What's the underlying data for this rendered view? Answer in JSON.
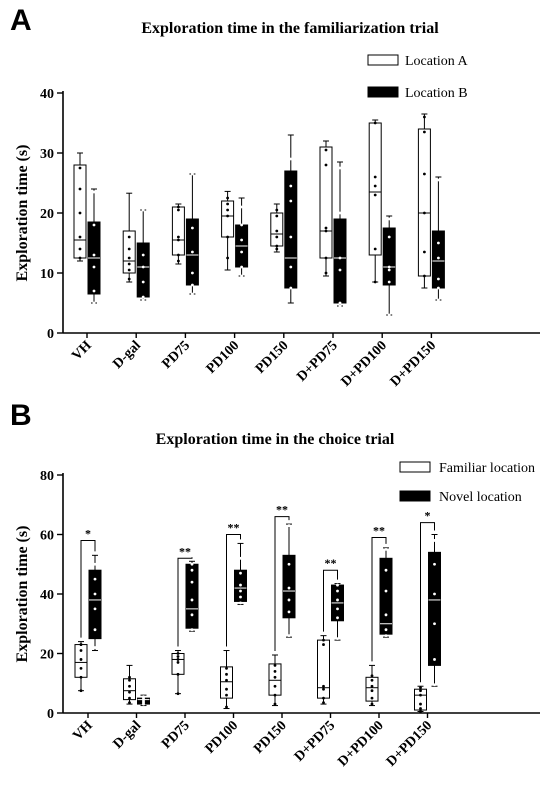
{
  "colors": {
    "open_box": "#ffffff",
    "filled_box": "#000000",
    "stroke": "#000000"
  },
  "panels": [
    {
      "letter": "A",
      "chart_data": {
        "type": "box",
        "title": "Exploration time in the familiarization trial",
        "xlabel": "",
        "ylabel": "Exploration time (s)",
        "ylim": [
          0,
          40
        ],
        "yticks": [
          0,
          10,
          20,
          30,
          40
        ],
        "categories": [
          "VH",
          "D-gal",
          "PD75",
          "PD100",
          "PD150",
          "D+PD75",
          "D+PD100",
          "D+PD150"
        ],
        "legend": {
          "position": "top-right",
          "entries": [
            {
              "label": "Location A",
              "style": "open"
            },
            {
              "label": "Location B",
              "style": "filled"
            }
          ]
        },
        "series": [
          {
            "name": "Location A",
            "style": "open",
            "boxes": [
              {
                "min": 12,
                "q1": 12.5,
                "median": 15.5,
                "q3": 28,
                "max": 30,
                "points": [
                  12.5,
                  14,
                  16,
                  20,
                  24,
                  27.5
                ]
              },
              {
                "min": 8.5,
                "q1": 10,
                "median": 12,
                "q3": 17,
                "max": 23.3,
                "points": [
                  9,
                  10.5,
                  11.5,
                  12.5,
                  14,
                  16
                ]
              },
              {
                "min": 11.5,
                "q1": 13,
                "median": 15.5,
                "q3": 21,
                "max": 21.5,
                "points": [
                  12,
                  13,
                  15.5,
                  16,
                  20.5,
                  21
                ]
              },
              {
                "min": 10.5,
                "q1": 16,
                "median": 19.5,
                "q3": 22,
                "max": 23.6,
                "points": [
                  12.5,
                  16,
                  19.5,
                  20.5,
                  21.5,
                  22.5
                ]
              },
              {
                "min": 13.5,
                "q1": 14.5,
                "median": 16.5,
                "q3": 20,
                "max": 21.5,
                "points": [
                  14,
                  14.5,
                  16,
                  17,
                  19.5,
                  20.5
                ]
              },
              {
                "min": 9.5,
                "q1": 12.5,
                "median": 17,
                "q3": 31,
                "max": 32,
                "points": [
                  10,
                  12.5,
                  17,
                  17.5,
                  28,
                  30.5
                ]
              },
              {
                "min": 8.5,
                "q1": 13,
                "median": 23.5,
                "q3": 35,
                "max": 35.5,
                "points": [
                  8.5,
                  14,
                  23,
                  24.5,
                  26,
                  35
                ]
              },
              {
                "min": 7.5,
                "q1": 9.5,
                "median": 20,
                "q3": 34,
                "max": 36.5,
                "points": [
                  9.5,
                  13.5,
                  20,
                  26.5,
                  33.5,
                  36
                ]
              }
            ]
          },
          {
            "name": "Location B",
            "style": "filled",
            "boxes": [
              {
                "min": 5,
                "q1": 6.5,
                "median": 12.5,
                "q3": 18.5,
                "max": 24,
                "points": [
                  5,
                  7,
                  11,
                  13,
                  18,
                  23.5
                ]
              },
              {
                "min": 5.5,
                "q1": 6,
                "median": 11,
                "q3": 15,
                "max": 20.5,
                "points": [
                  5.5,
                  6,
                  8.5,
                  11,
                  13,
                  20.5
                ]
              },
              {
                "min": 6.5,
                "q1": 8,
                "median": 13,
                "q3": 19,
                "max": 26.5,
                "points": [
                  6.5,
                  8,
                  10,
                  13.5,
                  17.5,
                  26.5
                ]
              },
              {
                "min": 9.5,
                "q1": 11,
                "median": 14.5,
                "q3": 18,
                "max": 22.5,
                "points": [
                  9.5,
                  11,
                  13.5,
                  15.5,
                  18,
                  21
                ]
              },
              {
                "min": 5,
                "q1": 7.5,
                "median": 12.5,
                "q3": 27,
                "max": 33,
                "points": [
                  7.5,
                  11,
                  16,
                  22,
                  24.5,
                  29
                ]
              },
              {
                "min": 4.5,
                "q1": 5,
                "median": 12.5,
                "q3": 19,
                "max": 28.5,
                "points": [
                  4.5,
                  5,
                  10.5,
                  12.5,
                  20,
                  27.5
                ]
              },
              {
                "min": 3,
                "q1": 8,
                "median": 11,
                "q3": 17.5,
                "max": 19.5,
                "points": [
                  3,
                  8.5,
                  10.5,
                  11,
                  16,
                  19
                ]
              },
              {
                "min": 5.5,
                "q1": 7.5,
                "median": 12,
                "q3": 17,
                "max": 26,
                "points": [
                  5.5,
                  7.5,
                  9,
                  12.5,
                  15,
                  25.5
                ]
              }
            ]
          }
        ]
      }
    },
    {
      "letter": "B",
      "chart_data": {
        "type": "box",
        "title": "Exploration time in the choice trial",
        "xlabel": "",
        "ylabel": "Exploration time (s)",
        "ylim": [
          0,
          80
        ],
        "yticks": [
          0,
          20,
          40,
          60,
          80
        ],
        "categories": [
          "VH",
          "D-gal",
          "PD75",
          "PD100",
          "PD150",
          "D+PD75",
          "D+PD100",
          "D+PD150"
        ],
        "legend": {
          "position": "top-right",
          "entries": [
            {
              "label": "Familiar location",
              "style": "open"
            },
            {
              "label": "Novel location",
              "style": "filled"
            }
          ]
        },
        "significance": [
          {
            "category": "VH",
            "label": "*",
            "bracket_top": 58
          },
          {
            "category": "PD75",
            "label": "**",
            "bracket_top": 52
          },
          {
            "category": "PD100",
            "label": "**",
            "bracket_top": 60
          },
          {
            "category": "PD150",
            "label": "**",
            "bracket_top": 66
          },
          {
            "category": "D+PD75",
            "label": "**",
            "bracket_top": 48
          },
          {
            "category": "D+PD100",
            "label": "**",
            "bracket_top": 59
          },
          {
            "category": "D+PD150",
            "label": "*",
            "bracket_top": 64
          }
        ],
        "series": [
          {
            "name": "Familiar location",
            "style": "open",
            "boxes": [
              {
                "min": 7.5,
                "q1": 12,
                "median": 17,
                "q3": 23,
                "max": 24,
                "points": [
                  7.5,
                  12,
                  15,
                  18,
                  21,
                  23
                ]
              },
              {
                "min": 3,
                "q1": 4.5,
                "median": 7.5,
                "q3": 11.5,
                "max": 16,
                "points": [
                  3.5,
                  5,
                  7,
                  9,
                  11,
                  12
                ]
              },
              {
                "min": 6.5,
                "q1": 13,
                "median": 18,
                "q3": 20,
                "max": 21,
                "points": [
                  6.5,
                  13,
                  17,
                  18,
                  19,
                  20
                ]
              },
              {
                "min": 1.5,
                "q1": 5,
                "median": 10.5,
                "q3": 15.5,
                "max": 21,
                "points": [
                  2,
                  6,
                  8,
                  11,
                  13,
                  15
                ]
              },
              {
                "min": 2.5,
                "q1": 6,
                "median": 11,
                "q3": 16.5,
                "max": 19.5,
                "points": [
                  3,
                  6,
                  9,
                  12,
                  14,
                  16
                ]
              },
              {
                "min": 3,
                "q1": 5,
                "median": 8.5,
                "q3": 24.5,
                "max": 26,
                "points": [
                  3.5,
                  5,
                  8,
                  9,
                  23,
                  24.5
                ]
              },
              {
                "min": 2.5,
                "q1": 4,
                "median": 8.5,
                "q3": 12,
                "max": 16,
                "points": [
                  3,
                  5,
                  7.5,
                  9,
                  11,
                  12.5
                ]
              },
              {
                "min": 0.5,
                "q1": 1,
                "median": 6,
                "q3": 8,
                "max": 9,
                "points": [
                  0.5,
                  1.5,
                  3,
                  6,
                  7.5,
                  8.5
                ]
              }
            ]
          },
          {
            "name": "Novel location",
            "style": "filled",
            "boxes": [
              {
                "min": 21,
                "q1": 25,
                "median": 38,
                "q3": 48,
                "max": 53,
                "points": [
                  22,
                  28,
                  35,
                  40,
                  45,
                  50
                ]
              },
              {
                "min": 2.5,
                "q1": 3,
                "median": 4.5,
                "q3": 5,
                "max": 6,
                "points": [
                  3,
                  3.5,
                  4,
                  4.5,
                  5,
                  5.5
                ]
              },
              {
                "min": 27.5,
                "q1": 28.5,
                "median": 35,
                "q3": 50,
                "max": 51,
                "points": [
                  28,
                  33,
                  38,
                  44,
                  48,
                  50
                ]
              },
              {
                "min": 36.5,
                "q1": 37.5,
                "median": 42,
                "q3": 48,
                "max": 57,
                "points": [
                  37,
                  39,
                  41,
                  43,
                  47,
                  52
                ]
              },
              {
                "min": 25.5,
                "q1": 32,
                "median": 41,
                "q3": 53,
                "max": 63.5,
                "points": [
                  26,
                  34,
                  38,
                  42,
                  50,
                  63
                ]
              },
              {
                "min": 24.5,
                "q1": 31,
                "median": 37,
                "q3": 43,
                "max": 43.5,
                "points": [
                  25,
                  32,
                  35,
                  38,
                  41,
                  43
                ]
              },
              {
                "min": 25.5,
                "q1": 26.5,
                "median": 30,
                "q3": 52,
                "max": 55.5,
                "points": [
                  26,
                  28,
                  33,
                  41,
                  48,
                  55
                ]
              },
              {
                "min": 9,
                "q1": 16,
                "median": 38,
                "q3": 54,
                "max": 60,
                "points": [
                  9.5,
                  18,
                  30,
                  40,
                  50,
                  58
                ]
              }
            ]
          }
        ]
      }
    }
  ]
}
